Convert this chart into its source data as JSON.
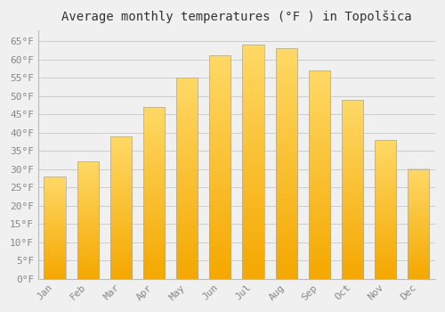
{
  "title": "Average monthly temperatures (°F ) in Topolšica",
  "months": [
    "Jan",
    "Feb",
    "Mar",
    "Apr",
    "May",
    "Jun",
    "Jul",
    "Aug",
    "Sep",
    "Oct",
    "Nov",
    "Dec"
  ],
  "values": [
    28,
    32,
    39,
    47,
    55,
    61,
    64,
    63,
    57,
    49,
    38,
    30
  ],
  "bar_color_bottom": "#F5A800",
  "bar_color_top": "#FFD966",
  "bar_edge_color": "#AAAAAA",
  "background_color": "#F0F0F0",
  "plot_bg_color": "#F0F0F0",
  "grid_color": "#CCCCCC",
  "ylim": [
    0,
    68
  ],
  "yticks": [
    0,
    5,
    10,
    15,
    20,
    25,
    30,
    35,
    40,
    45,
    50,
    55,
    60,
    65
  ],
  "title_fontsize": 10,
  "tick_fontsize": 8,
  "tick_font_color": "#888888",
  "title_color": "#333333",
  "bar_width": 0.65
}
